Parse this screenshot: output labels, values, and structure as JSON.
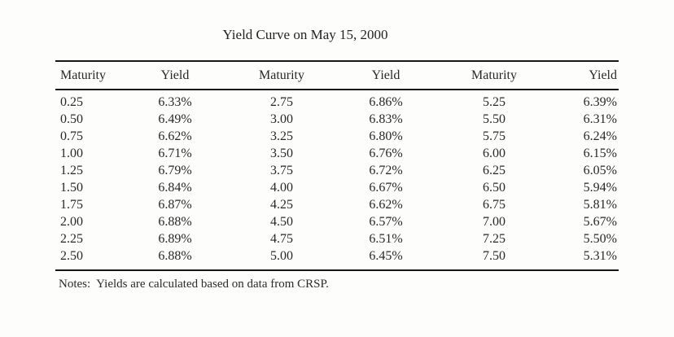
{
  "page": {
    "title": "Yield Curve on May 15, 2000"
  },
  "table": {
    "headers": [
      "Maturity",
      "Yield",
      "Maturity",
      "Yield",
      "Maturity",
      "Yield"
    ],
    "rows": [
      [
        "0.25",
        "6.33%",
        "2.75",
        "6.86%",
        "5.25",
        "6.39%"
      ],
      [
        "0.50",
        "6.49%",
        "3.00",
        "6.83%",
        "5.50",
        "6.31%"
      ],
      [
        "0.75",
        "6.62%",
        "3.25",
        "6.80%",
        "5.75",
        "6.24%"
      ],
      [
        "1.00",
        "6.71%",
        "3.50",
        "6.76%",
        "6.00",
        "6.15%"
      ],
      [
        "1.25",
        "6.79%",
        "3.75",
        "6.72%",
        "6.25",
        "6.05%"
      ],
      [
        "1.50",
        "6.84%",
        "4.00",
        "6.67%",
        "6.50",
        "5.94%"
      ],
      [
        "1.75",
        "6.87%",
        "4.25",
        "6.62%",
        "6.75",
        "5.81%"
      ],
      [
        "2.00",
        "6.88%",
        "4.50",
        "6.57%",
        "7.00",
        "5.67%"
      ],
      [
        "2.25",
        "6.89%",
        "4.75",
        "6.51%",
        "7.25",
        "5.50%"
      ],
      [
        "2.50",
        "6.88%",
        "5.00",
        "6.45%",
        "7.50",
        "5.31%"
      ]
    ]
  },
  "notes": {
    "label": "Notes:",
    "text": "Yields are calculated based on data from CRSP."
  },
  "colors": {
    "background": "#fdfdfc",
    "text": "#282828",
    "rule": "#161616"
  }
}
